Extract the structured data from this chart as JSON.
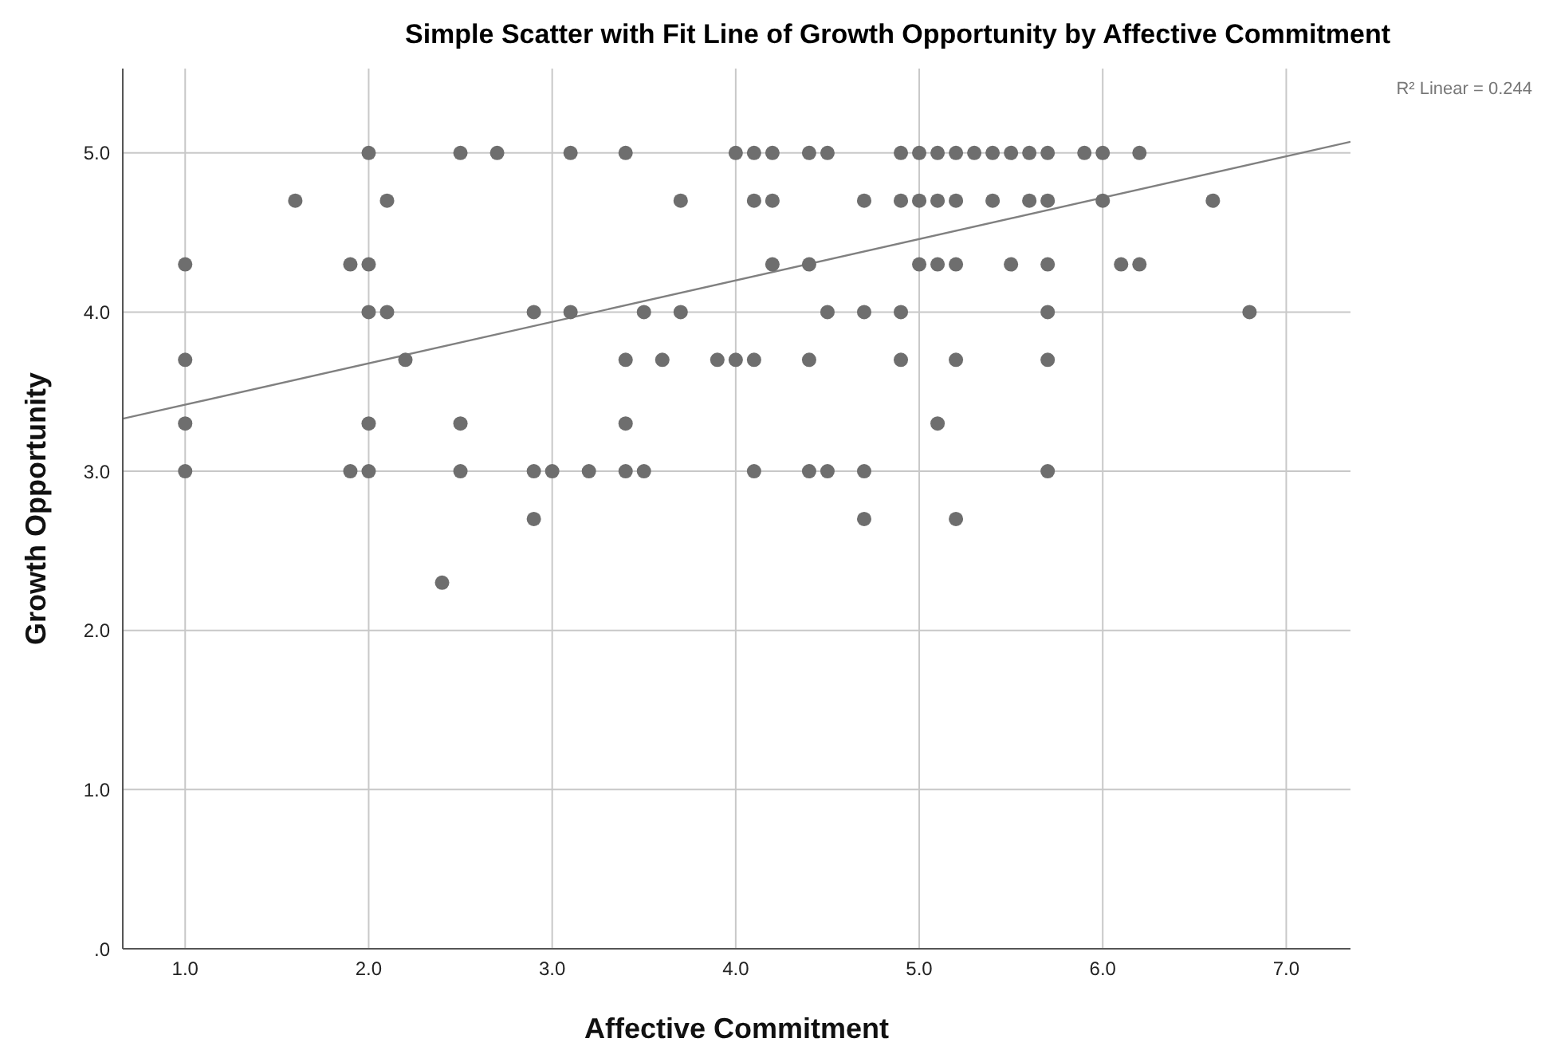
{
  "chart_data": {
    "type": "scatter",
    "title": "Simple Scatter with Fit Line of Growth Opportunity by Affective Commitment",
    "xlabel": "Affective Commitment",
    "ylabel": "Growth Opportunity",
    "annotations": [
      "R² Linear = 0.244"
    ],
    "xlim": [
      0.66,
      7.35
    ],
    "xticks": [
      {
        "value": 1,
        "label": "1.0"
      },
      {
        "value": 2,
        "label": "2.0"
      },
      {
        "value": 3,
        "label": "3.0"
      },
      {
        "value": 4,
        "label": "4.0"
      },
      {
        "value": 5,
        "label": "5.0"
      },
      {
        "value": 6,
        "label": "6.0"
      },
      {
        "value": 7,
        "label": "7.0"
      }
    ],
    "ylim": [
      0,
      5.53
    ],
    "yticks": [
      {
        "value": 0,
        "label": ".0"
      },
      {
        "value": 1,
        "label": "1.0"
      },
      {
        "value": 2,
        "label": "2.0"
      },
      {
        "value": 3,
        "label": "3.0"
      },
      {
        "value": 4,
        "label": "4.0"
      },
      {
        "value": 5,
        "label": "5.0"
      }
    ],
    "grid": true,
    "marker": "circle",
    "series": [
      {
        "color": "#6e6e6e",
        "x": [
          1.0,
          1.0,
          1.0,
          1.0,
          1.6,
          1.9,
          1.9,
          2.0,
          2.0,
          2.0,
          2.0,
          2.0,
          2.1,
          2.1,
          2.2,
          2.4,
          2.5,
          2.5,
          2.5,
          2.7,
          2.9,
          2.9,
          2.9,
          3.0,
          3.1,
          3.1,
          3.2,
          3.4,
          3.4,
          3.4,
          3.4,
          3.5,
          3.5,
          3.6,
          3.7,
          3.7,
          3.9,
          4.0,
          4.0,
          4.1,
          4.1,
          4.1,
          4.1,
          4.2,
          4.2,
          4.2,
          4.4,
          4.4,
          4.4,
          4.4,
          4.5,
          4.5,
          4.5,
          4.7,
          4.7,
          4.7,
          4.7,
          4.9,
          4.9,
          4.9,
          4.9,
          5.0,
          5.0,
          5.0,
          5.1,
          5.1,
          5.1,
          5.1,
          5.2,
          5.2,
          5.2,
          5.2,
          5.2,
          5.3,
          5.4,
          5.4,
          5.5,
          5.5,
          5.6,
          5.6,
          5.7,
          5.7,
          5.7,
          5.7,
          5.7,
          5.7,
          5.9,
          6.0,
          6.0,
          6.1,
          6.2,
          6.2,
          6.6,
          6.8
        ],
        "values": [
          4.3,
          3.7,
          3.3,
          3.0,
          4.7,
          4.3,
          3.0,
          5.0,
          4.3,
          4.0,
          3.3,
          3.0,
          4.7,
          4.0,
          3.7,
          2.3,
          5.0,
          3.3,
          3.0,
          5.0,
          4.0,
          3.0,
          2.7,
          3.0,
          5.0,
          4.0,
          3.0,
          5.0,
          3.7,
          3.3,
          3.0,
          4.0,
          3.0,
          3.7,
          4.7,
          4.0,
          3.7,
          5.0,
          3.7,
          5.0,
          4.7,
          3.7,
          3.0,
          5.0,
          4.7,
          4.3,
          5.0,
          4.3,
          3.7,
          3.0,
          5.0,
          4.0,
          3.0,
          4.7,
          4.0,
          3.0,
          2.7,
          5.0,
          4.7,
          4.0,
          3.7,
          5.0,
          4.7,
          4.3,
          5.0,
          4.7,
          4.3,
          3.3,
          5.0,
          4.7,
          4.3,
          3.7,
          2.7,
          5.0,
          5.0,
          4.7,
          5.0,
          4.3,
          5.0,
          4.7,
          5.0,
          4.7,
          4.3,
          4.0,
          3.7,
          3.0,
          5.0,
          5.0,
          4.7,
          4.3,
          5.0,
          4.3,
          4.7,
          4.0
        ]
      },
      {
        "type": "line",
        "marker": "none",
        "color": "#808080",
        "x": [
          0.66,
          7.35
        ],
        "values": [
          3.33,
          5.07
        ]
      }
    ]
  }
}
